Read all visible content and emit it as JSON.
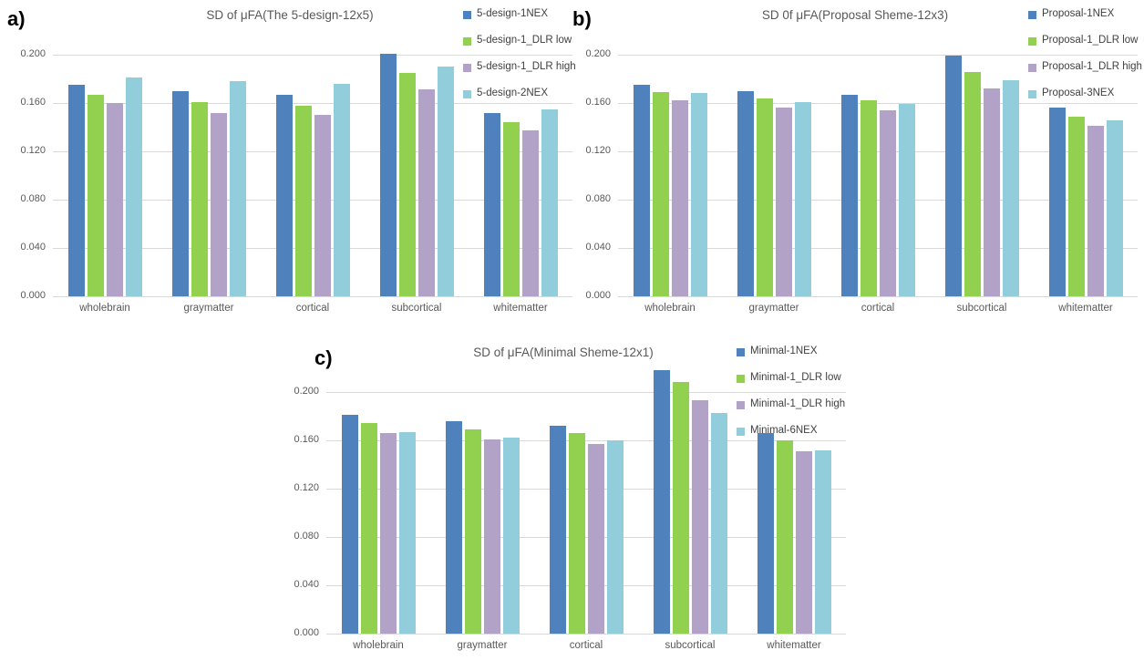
{
  "page": {
    "background": "#ffffff"
  },
  "colors": {
    "series_blue": "#4F81BD",
    "series_green": "#92D050",
    "series_purple": "#B3A2C7",
    "series_lightblue": "#92CDDC",
    "gridline": "#d9d9d9",
    "axis_text": "#595959",
    "title_text": "#595959",
    "legend_text": "#404040",
    "panel_label_text": "#000000"
  },
  "chart_data": [
    {
      "type": "bar",
      "panel_label": "a)",
      "title": "SD of μFA(The 5-design-12x5)",
      "categories": [
        "wholebrain",
        "graymatter",
        "cortical",
        "subcortical",
        "whitematter"
      ],
      "y_ticks": [
        "0.200",
        "0.160",
        "0.120",
        "0.080",
        "0.040",
        "0.000"
      ],
      "ylim": [
        0,
        0.2
      ],
      "grid": true,
      "legend_position": "top-right",
      "series": [
        {
          "name": "5-design-1NEX",
          "color": "#4F81BD",
          "values": [
            0.175,
            0.17,
            0.167,
            0.201,
            0.152
          ]
        },
        {
          "name": "5-design-1_DLR low",
          "color": "#92D050",
          "values": [
            0.167,
            0.161,
            0.158,
            0.185,
            0.144
          ]
        },
        {
          "name": "5-design-1_DLR high",
          "color": "#B3A2C7",
          "values": [
            0.16,
            0.152,
            0.15,
            0.171,
            0.137
          ]
        },
        {
          "name": "5-design-2NEX",
          "color": "#92CDDC",
          "values": [
            0.181,
            0.178,
            0.176,
            0.19,
            0.155
          ]
        }
      ]
    },
    {
      "type": "bar",
      "panel_label": "b)",
      "title": "SD 0f μFA(Proposal Sheme-12x3)",
      "categories": [
        "wholebrain",
        "graymatter",
        "cortical",
        "subcortical",
        "whitematter"
      ],
      "y_ticks": [
        "0.200",
        "0.160",
        "0.120",
        "0.080",
        "0.040",
        "0.000"
      ],
      "ylim": [
        0,
        0.2
      ],
      "grid": true,
      "legend_position": "top-right",
      "series": [
        {
          "name": "Proposal-1NEX",
          "color": "#4F81BD",
          "values": [
            0.175,
            0.17,
            0.167,
            0.199,
            0.156
          ]
        },
        {
          "name": "Proposal-1_DLR low",
          "color": "#92D050",
          "values": [
            0.169,
            0.164,
            0.162,
            0.186,
            0.149
          ]
        },
        {
          "name": "Proposal-1_DLR high",
          "color": "#B3A2C7",
          "values": [
            0.162,
            0.156,
            0.154,
            0.172,
            0.141
          ]
        },
        {
          "name": "Proposal-3NEX",
          "color": "#92CDDC",
          "values": [
            0.168,
            0.161,
            0.159,
            0.179,
            0.146
          ]
        }
      ]
    },
    {
      "type": "bar",
      "panel_label": "c)",
      "title": "SD of μFA(Minimal Sheme-12x1)",
      "categories": [
        "wholebrain",
        "graymatter",
        "cortical",
        "subcortical",
        "whitematter"
      ],
      "y_ticks": [
        "0.200",
        "0.160",
        "0.120",
        "0.080",
        "0.040",
        "0.000"
      ],
      "ylim": [
        0,
        0.2
      ],
      "grid": true,
      "legend_position": "top-right",
      "series": [
        {
          "name": "Minimal-1NEX",
          "color": "#4F81BD",
          "values": [
            0.181,
            0.176,
            0.172,
            0.218,
            0.166
          ]
        },
        {
          "name": "Minimal-1_DLR low",
          "color": "#92D050",
          "values": [
            0.174,
            0.169,
            0.166,
            0.208,
            0.16
          ]
        },
        {
          "name": "Minimal-1_DLR high",
          "color": "#B3A2C7",
          "values": [
            0.166,
            0.161,
            0.157,
            0.193,
            0.151
          ]
        },
        {
          "name": "Minimal-6NEX",
          "color": "#92CDDC",
          "values": [
            0.167,
            0.162,
            0.16,
            0.183,
            0.152
          ]
        }
      ]
    }
  ]
}
